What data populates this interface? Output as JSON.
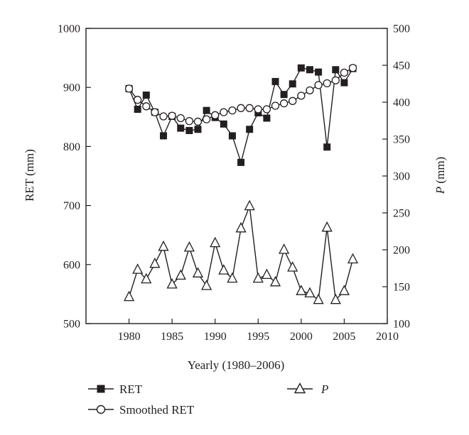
{
  "chart_data": {
    "type": "line",
    "xlabel": "Yearly (1980–2006)",
    "ylabel_left": "RET (mm)",
    "ylabel_right_italic": "P",
    "ylabel_right_rest": " (mm)",
    "xlim": [
      1975,
      2010
    ],
    "ylim_left": [
      500,
      1000
    ],
    "ylim_right": [
      100,
      500
    ],
    "x_ticks": [
      1980,
      1985,
      1990,
      1995,
      2000,
      2005,
      2010
    ],
    "y_left_ticks": [
      500,
      600,
      700,
      800,
      900,
      1000
    ],
    "y_right_ticks": [
      100,
      150,
      200,
      250,
      300,
      350,
      400,
      450,
      500
    ],
    "grid": false,
    "legend_placement": "bottom",
    "x": [
      1980,
      1981,
      1982,
      1983,
      1984,
      1985,
      1986,
      1987,
      1988,
      1989,
      1990,
      1991,
      1992,
      1993,
      1994,
      1995,
      1996,
      1997,
      1998,
      1999,
      2000,
      2001,
      2002,
      2003,
      2004,
      2005,
      2006
    ],
    "series": [
      {
        "name": "RET",
        "axis": "left",
        "marker": "filled-square",
        "values": [
          898,
          863,
          887,
          858,
          818,
          851,
          831,
          827,
          829,
          861,
          849,
          838,
          818,
          773,
          829,
          857,
          848,
          910,
          888,
          906,
          933,
          930,
          926,
          799,
          930,
          908,
          932
        ]
      },
      {
        "name": "Smoothed RET",
        "axis": "left",
        "marker": "open-circle",
        "values": [
          898,
          879,
          868,
          858,
          851,
          852,
          848,
          843,
          842,
          846,
          853,
          858,
          861,
          865,
          865,
          863,
          863,
          869,
          873,
          877,
          886,
          895,
          904,
          907,
          912,
          925,
          933
        ]
      },
      {
        "name": "P",
        "axis": "right",
        "marker": "open-triangle",
        "values": [
          136,
          173,
          160,
          181,
          204,
          153,
          165,
          203,
          168,
          151,
          209,
          172,
          161,
          229,
          259,
          161,
          166,
          156,
          200,
          176,
          144,
          141,
          132,
          230,
          132,
          144,
          187
        ]
      }
    ]
  }
}
